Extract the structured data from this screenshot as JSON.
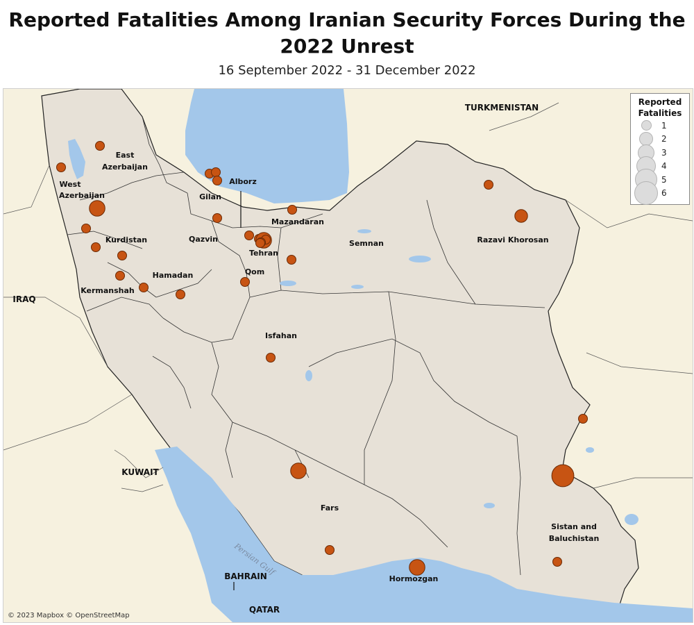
{
  "title": "Reported Fatalities Among Iranian Security Forces During the 2022 Unrest",
  "subtitle": "16 September 2022 - 31 December 2022",
  "attribution": "© 2023 Mapbox © OpenStreetMap",
  "colors": {
    "land_iran": "#e7e1d7",
    "land_other": "#f6f1df",
    "water": "#a3c7ea",
    "marker": "#c75413",
    "marker_stroke": "#6b2a05",
    "border": "#222222"
  },
  "legend": {
    "title": "Reported Fatalities",
    "items": [
      {
        "value": "1",
        "fatalities": 1
      },
      {
        "value": "2",
        "fatalities": 2
      },
      {
        "value": "3",
        "fatalities": 3
      },
      {
        "value": "4",
        "fatalities": 4
      },
      {
        "value": "5",
        "fatalities": 5
      },
      {
        "value": "6",
        "fatalities": 6
      }
    ]
  },
  "labels": {
    "countries": {
      "turkmenistan": "TURKMENISTAN",
      "iraq": "IRAQ",
      "kuwait": "KUWAIT",
      "bahrain": "BAHRAIN",
      "qatar": "QATAR"
    },
    "seas": {
      "persian_gulf": "Persian Gulf"
    },
    "provinces": {
      "east_azerbaijan_1": "East",
      "east_azerbaijan_2": "Azerbaijan",
      "west_azerbaijan_1": "West",
      "west_azerbaijan_2": "Azerbaijan",
      "gilan": "Gilan",
      "alborz": "Alborz",
      "mazandaran": "Mazandaran",
      "qazvin": "Qazvin",
      "kurdistan": "Kurdistan",
      "tehran": "Tehran",
      "semnan": "Semnan",
      "razavi_khorosan": "Razavi Khorosan",
      "qom": "Qom",
      "hamadan": "Hamadan",
      "kermanshah": "Kermanshah",
      "isfahan": "Isfahan",
      "fars": "Fars",
      "sistan_1": "Sistan and",
      "sistan_2": "Baluchistan",
      "hormozgan": "Hormozgan"
    }
  },
  "markers": [
    {
      "fatalities": 1
    },
    {
      "fatalities": 1
    },
    {
      "fatalities": 1
    },
    {
      "fatalities": 1
    },
    {
      "fatalities": 1
    },
    {
      "fatalities": 3
    },
    {
      "fatalities": 1
    },
    {
      "fatalities": 1
    },
    {
      "fatalities": 1
    },
    {
      "fatalities": 1
    },
    {
      "fatalities": 1
    },
    {
      "fatalities": 1
    },
    {
      "fatalities": 1
    },
    {
      "fatalities": 1
    },
    {
      "fatalities": 1
    },
    {
      "fatalities": 3
    },
    {
      "fatalities": 1
    },
    {
      "fatalities": 1
    },
    {
      "fatalities": 1
    },
    {
      "fatalities": 1
    },
    {
      "fatalities": 1
    },
    {
      "fatalities": 1
    },
    {
      "fatalities": 1
    },
    {
      "fatalities": 2
    },
    {
      "fatalities": 1
    },
    {
      "fatalities": 3
    },
    {
      "fatalities": 1
    },
    {
      "fatalities": 6
    },
    {
      "fatalities": 1
    },
    {
      "fatalities": 3
    },
    {
      "fatalities": 1
    },
    {
      "fatalities": 1
    }
  ]
}
